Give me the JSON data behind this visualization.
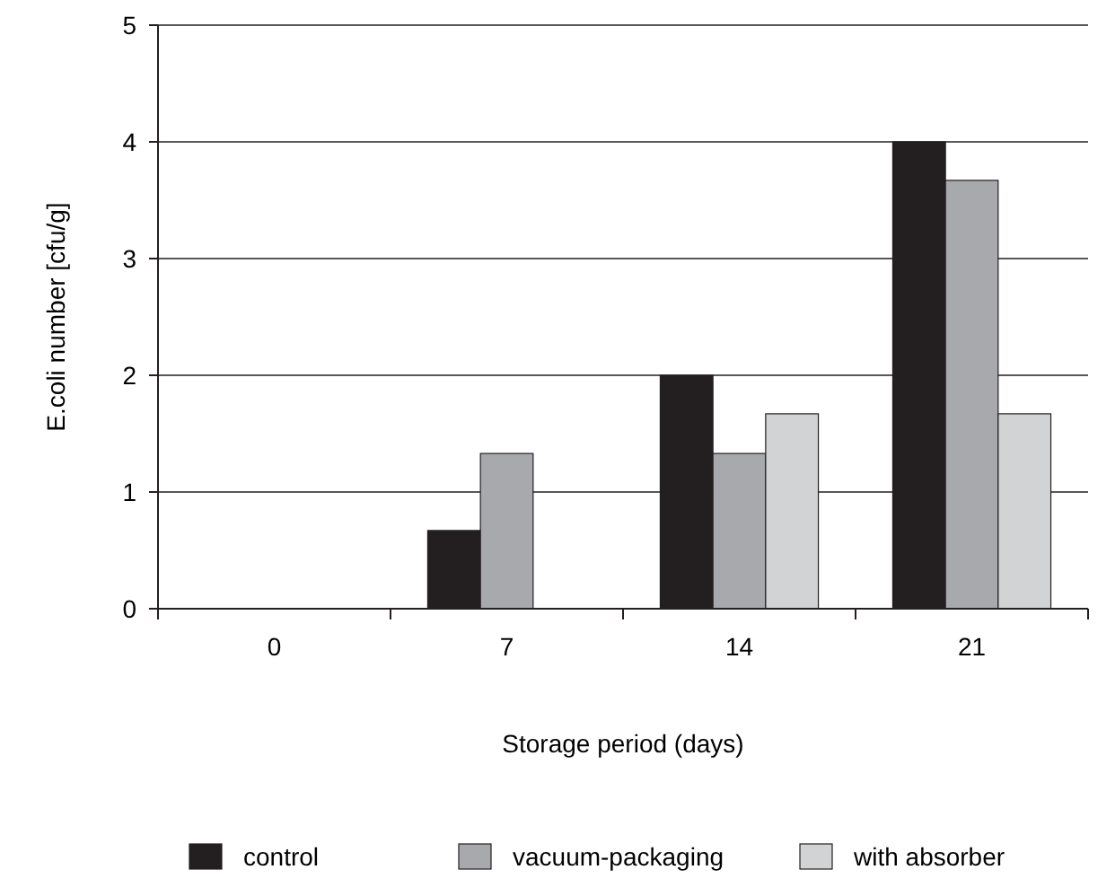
{
  "chart_data": {
    "type": "bar",
    "xlabel": "Storage period (days)",
    "ylabel": "E.coli number [cfu/g]",
    "categories": [
      "0",
      "7",
      "14",
      "21"
    ],
    "series": [
      {
        "name": "control",
        "color": "#231f20",
        "values": [
          0,
          0.67,
          2,
          4
        ]
      },
      {
        "name": "vacuum-packaging",
        "color": "#a7a9ac",
        "values": [
          0,
          1.33,
          1.33,
          3.67
        ]
      },
      {
        "name": "with absorber",
        "color": "#d1d3d4",
        "values": [
          0,
          0,
          1.67,
          1.67
        ]
      }
    ],
    "ylim": [
      0,
      5
    ],
    "yticks": [
      0,
      1,
      2,
      3,
      4,
      5
    ],
    "grid": "y",
    "legend": "bottom"
  }
}
